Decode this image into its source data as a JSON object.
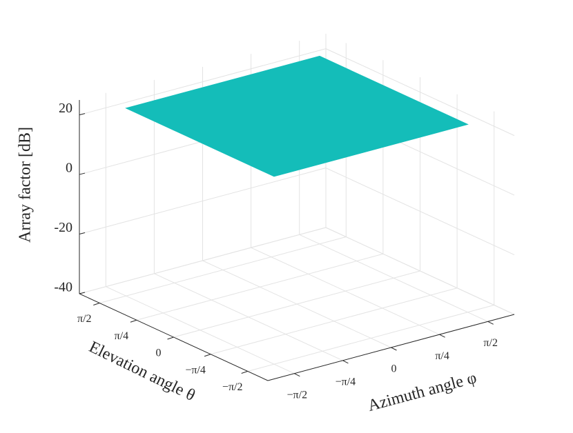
{
  "chart_data": {
    "type": "surface",
    "xlabel": "Azimuth angle φ",
    "ylabel": "Elevation angle θ",
    "zlabel": "Array factor [dB]",
    "x": [
      -1.5708,
      1.5708
    ],
    "y": [
      -1.5708,
      1.5708
    ],
    "z": [
      [
        23,
        23
      ],
      [
        23,
        23
      ]
    ],
    "color": "#14bdb9",
    "xlim": [
      -2,
      2
    ],
    "ylim": [
      -2,
      2
    ],
    "zlim": [
      -40,
      25
    ],
    "xticks": [
      {
        "value": -1.5708,
        "label": "−π/2"
      },
      {
        "value": -0.7854,
        "label": "−π/4"
      },
      0,
      {
        "value": 0.7854,
        "label": "π/4"
      },
      {
        "value": 1.5708,
        "label": "π/2"
      }
    ],
    "yticks": [
      {
        "value": -1.5708,
        "label": "−π/2"
      },
      {
        "value": -0.7854,
        "label": "−π/4"
      },
      0,
      {
        "value": 0.7854,
        "label": "π/4"
      },
      {
        "value": 1.5708,
        "label": "π/2"
      }
    ],
    "zticks": [
      -40,
      -20,
      0,
      20
    ],
    "grid": true
  }
}
